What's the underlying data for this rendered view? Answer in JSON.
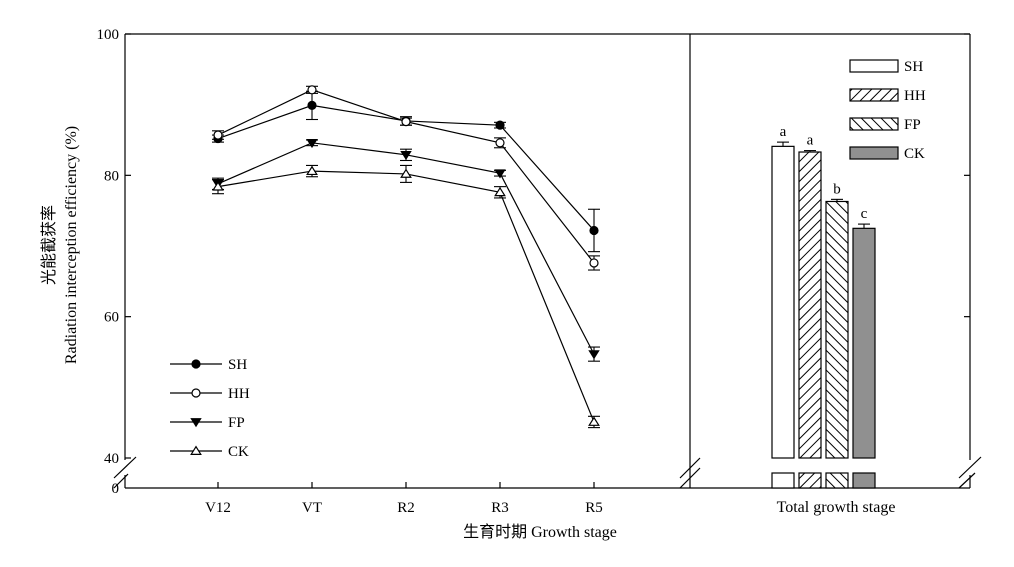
{
  "chart_data": [
    {
      "type": "line",
      "panel": "left",
      "categories": [
        "V12",
        "VT",
        "R2",
        "R3",
        "R5"
      ],
      "ylim": [
        40,
        100
      ],
      "yticks": [
        40,
        60,
        80,
        100
      ],
      "y_break_label": "0",
      "ylabel_cn": "光能截获率",
      "ylabel": "Radiation interception efficiency (%)",
      "xlabel": "生育时期 Growth stage",
      "legend_position": "bottom-left",
      "series": [
        {
          "name": "SH",
          "marker": "filled-circle",
          "values": [
            85.2,
            89.9,
            87.7,
            87.1,
            72.2
          ],
          "errors": [
            0.5,
            2.0,
            0.6,
            0.4,
            3.0
          ]
        },
        {
          "name": "HH",
          "marker": "open-circle",
          "values": [
            85.7,
            92.1,
            87.6,
            84.6,
            67.6
          ],
          "errors": [
            0.6,
            0.5,
            0.5,
            0.7,
            1.0
          ]
        },
        {
          "name": "FP",
          "marker": "filled-triangle-down",
          "values": [
            78.8,
            84.6,
            82.9,
            80.3,
            54.7
          ],
          "errors": [
            0.8,
            0.4,
            0.8,
            0.4,
            1.0
          ]
        },
        {
          "name": "CK",
          "marker": "open-triangle-up",
          "values": [
            78.4,
            80.6,
            80.2,
            77.6,
            45.1
          ],
          "errors": [
            1.0,
            0.8,
            1.2,
            0.8,
            0.8
          ]
        }
      ]
    },
    {
      "type": "bar",
      "panel": "right",
      "categories": [
        "SH",
        "HH",
        "FP",
        "CK"
      ],
      "xlabel": "Total growth stage",
      "ylim": [
        40,
        100
      ],
      "legend_position": "top-right",
      "values": [
        84.1,
        83.3,
        76.3,
        72.5
      ],
      "errors": [
        0.6,
        0.2,
        0.3,
        0.6
      ],
      "labels": [
        "a",
        "a",
        "b",
        "c"
      ],
      "fills": [
        "white",
        "diag-right",
        "diag-left",
        "#909090"
      ]
    }
  ]
}
